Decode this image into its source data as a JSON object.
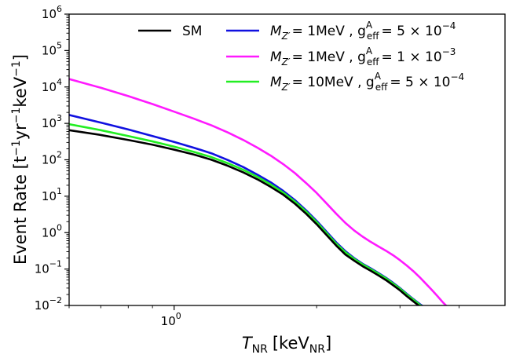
{
  "chart_data": {
    "type": "line",
    "title": "",
    "xlabel": "T_NR [keV_NR]",
    "xlabel_parts": {
      "symbol": "T",
      "symbol_sub": "NR",
      "unit_open": "[keV",
      "unit_sub": "NR",
      "unit_close": "]"
    },
    "ylabel": "Event Rate [t^-1 yr^-1 keV^-1]",
    "ylabel_parts": {
      "prefix": "Event Rate [t",
      "sup1": "−1",
      "mid1": "yr",
      "sup2": "−1",
      "mid2": "keV",
      "sup3": "−1",
      "suffix": "]"
    },
    "xscale": "log",
    "yscale": "log",
    "xlim": [
      0.6,
      5.0
    ],
    "ylim": [
      0.01,
      1000000
    ],
    "grid": false,
    "legend_position": "top-right",
    "x_ticks": [
      {
        "value": 1.0,
        "base": "10",
        "exp": "0"
      }
    ],
    "y_ticks": [
      {
        "value": 0.01,
        "base": "10",
        "exp": "−2"
      },
      {
        "value": 0.1,
        "base": "10",
        "exp": "−1"
      },
      {
        "value": 1,
        "base": "10",
        "exp": "0"
      },
      {
        "value": 10,
        "base": "10",
        "exp": "1"
      },
      {
        "value": 100,
        "base": "10",
        "exp": "2"
      },
      {
        "value": 1000,
        "base": "10",
        "exp": "3"
      },
      {
        "value": 10000,
        "base": "10",
        "exp": "4"
      },
      {
        "value": 100000,
        "base": "10",
        "exp": "5"
      },
      {
        "value": 1000000,
        "base": "10",
        "exp": "6"
      }
    ],
    "series": [
      {
        "name": "SM",
        "color": "#000000",
        "legend_label": {
          "text": "SM"
        },
        "x": [
          0.6,
          0.7,
          0.8,
          0.9,
          1.0,
          1.1,
          1.2,
          1.3,
          1.4,
          1.5,
          1.6,
          1.7,
          1.8,
          1.9,
          2.0,
          2.1,
          2.2,
          2.3,
          2.4,
          2.5,
          2.6,
          2.7,
          2.8,
          2.9,
          3.0,
          3.1,
          3.2,
          3.3,
          3.4,
          3.5,
          3.6,
          3.7
        ],
        "y": [
          650,
          480,
          350,
          260,
          190,
          140,
          100,
          68,
          45,
          29,
          18,
          11,
          6.2,
          3.3,
          1.7,
          0.85,
          0.44,
          0.25,
          0.17,
          0.12,
          0.09,
          0.067,
          0.05,
          0.036,
          0.026,
          0.018,
          0.013,
          0.0095,
          0.0075,
          0.0062,
          0.0055,
          0.005
        ]
      },
      {
        "name": "M_Z' = 1MeV, g_eff^A = 5×10^-4",
        "color": "#1010e0",
        "legend_label": {
          "mass_sub": "Z′",
          "mass_value": "= 1MeV",
          "coupling_sup": "A",
          "coupling_sub": "eff",
          "coupling_mantissa": "= 5 × 10",
          "coupling_exp": "−4"
        },
        "x": [
          0.6,
          0.7,
          0.8,
          0.9,
          1.0,
          1.1,
          1.2,
          1.3,
          1.4,
          1.5,
          1.6,
          1.7,
          1.8,
          1.9,
          2.0,
          2.1,
          2.2,
          2.3,
          2.4,
          2.5,
          2.6,
          2.7,
          2.8,
          2.9,
          3.0,
          3.1,
          3.2,
          3.3,
          3.4,
          3.5,
          3.6,
          3.7
        ],
        "y": [
          1700,
          1050,
          680,
          450,
          310,
          215,
          150,
          98,
          63,
          39,
          24,
          14,
          7.8,
          4.1,
          2.1,
          1.05,
          0.54,
          0.31,
          0.2,
          0.14,
          0.105,
          0.078,
          0.058,
          0.042,
          0.03,
          0.021,
          0.015,
          0.011,
          0.0085,
          0.007,
          0.006,
          0.0052
        ]
      },
      {
        "name": "M_Z' = 1MeV, g_eff^A = 1×10^-3",
        "color": "#ff1aff",
        "legend_label": {
          "mass_sub": "Z′",
          "mass_value": "= 1MeV",
          "coupling_sup": "A",
          "coupling_sub": "eff",
          "coupling_mantissa": "= 1 × 10",
          "coupling_exp": "−3"
        },
        "x": [
          0.6,
          0.7,
          0.8,
          0.9,
          1.0,
          1.1,
          1.2,
          1.3,
          1.4,
          1.5,
          1.6,
          1.7,
          1.8,
          1.9,
          2.0,
          2.1,
          2.2,
          2.3,
          2.4,
          2.5,
          2.6,
          2.7,
          2.8,
          2.9,
          3.0,
          3.1,
          3.2,
          3.3,
          3.4,
          3.5,
          3.6,
          3.7,
          3.8,
          3.9,
          4.0
        ],
        "y": [
          16500,
          9500,
          5600,
          3400,
          2100,
          1350,
          880,
          560,
          350,
          215,
          130,
          76,
          43,
          23,
          12.3,
          6.3,
          3.3,
          1.85,
          1.15,
          0.78,
          0.56,
          0.42,
          0.32,
          0.24,
          0.175,
          0.125,
          0.088,
          0.06,
          0.04,
          0.027,
          0.018,
          0.012,
          0.0085,
          0.006,
          0.0045
        ]
      },
      {
        "name": "M_Z' = 10MeV, g_eff^A = 5×10^-4",
        "color": "#22ee22",
        "legend_label": {
          "mass_sub": "Z′",
          "mass_value": "= 10MeV",
          "coupling_sup": "A",
          "coupling_sub": "eff",
          "coupling_mantissa": "= 5 × 10",
          "coupling_exp": "−4"
        },
        "x": [
          0.6,
          0.7,
          0.8,
          0.9,
          1.0,
          1.1,
          1.2,
          1.3,
          1.4,
          1.5,
          1.6,
          1.7,
          1.8,
          1.9,
          2.0,
          2.1,
          2.2,
          2.3,
          2.4,
          2.5,
          2.6,
          2.7,
          2.8,
          2.9,
          3.0,
          3.1,
          3.2,
          3.3,
          3.4,
          3.5,
          3.6,
          3.7
        ],
        "y": [
          950,
          650,
          450,
          320,
          230,
          165,
          118,
          80,
          53,
          34,
          21,
          12.6,
          7.1,
          3.8,
          1.95,
          0.97,
          0.5,
          0.29,
          0.19,
          0.135,
          0.1,
          0.075,
          0.056,
          0.04,
          0.029,
          0.02,
          0.0145,
          0.0105,
          0.0082,
          0.0067,
          0.0058,
          0.0051
        ]
      }
    ]
  }
}
